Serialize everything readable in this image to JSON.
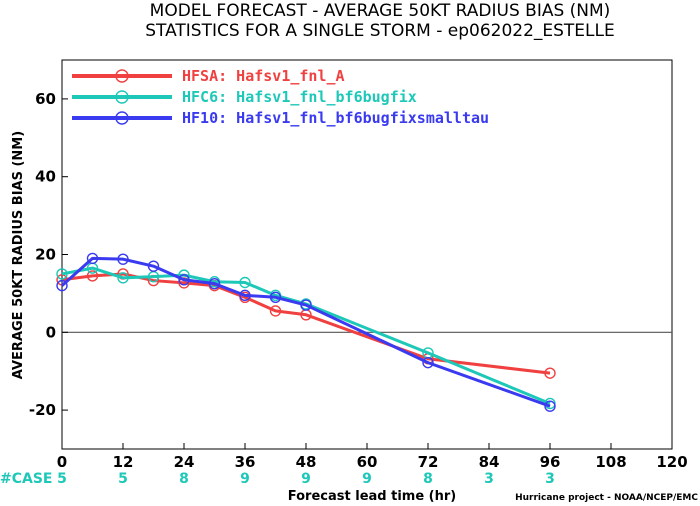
{
  "chart_data": {
    "type": "line",
    "title": "MODEL FORECAST - AVERAGE 50KT RADIUS BIAS (NM)",
    "subtitle": "STATISTICS FOR A SINGLE STORM - ep062022_ESTELLE",
    "xlabel": "Forecast lead time (hr)",
    "ylabel": "AVERAGE 50KT RADIUS BIAS (NM)",
    "xlim": [
      0,
      120
    ],
    "ylim": [
      -30,
      70
    ],
    "xticks": [
      0,
      12,
      24,
      36,
      48,
      60,
      72,
      84,
      96,
      108,
      120
    ],
    "yticks": [
      -20,
      0,
      20,
      40,
      60
    ],
    "zero_line": true,
    "legend_position": "top-left",
    "series": [
      {
        "name": "HFSA: Hafsv1_fnl_A",
        "color": "#f04040",
        "x": [
          0,
          6,
          12,
          18,
          24,
          30,
          36,
          42,
          48,
          72,
          96
        ],
        "y": [
          13.5,
          14.5,
          15,
          13.3,
          12.7,
          12,
          9,
          5.5,
          4.5,
          -6.8,
          -10.5
        ]
      },
      {
        "name": "HFC6: Hafsv1_fnl_bf6bugfix",
        "color": "#1ec8b8",
        "x": [
          0,
          6,
          12,
          18,
          24,
          30,
          36,
          42,
          48,
          72,
          96
        ],
        "y": [
          15,
          16.5,
          14,
          14.3,
          14.7,
          13,
          12.8,
          9.5,
          7.3,
          -5.3,
          -18.3
        ]
      },
      {
        "name": "HF10: Hafsv1_fnl_bf6bugfixsmalltau",
        "color": "#3a3af0",
        "x": [
          0,
          6,
          12,
          18,
          24,
          30,
          36,
          42,
          48,
          72,
          96
        ],
        "y": [
          12,
          19,
          18.8,
          17,
          13.5,
          12.5,
          9.5,
          9,
          7,
          -7.8,
          -19
        ]
      }
    ],
    "case_label": "#CASE",
    "case_color": "#1ec8b8",
    "cases": [
      {
        "x": 0,
        "n": "5"
      },
      {
        "x": 12,
        "n": "5"
      },
      {
        "x": 24,
        "n": "8"
      },
      {
        "x": 36,
        "n": "9"
      },
      {
        "x": 48,
        "n": "9"
      },
      {
        "x": 60,
        "n": "9"
      },
      {
        "x": 72,
        "n": "8"
      },
      {
        "x": 84,
        "n": "3"
      },
      {
        "x": 96,
        "n": "3"
      }
    ],
    "credit": "Hurricane project - NOAA/NCEP/EMC"
  }
}
